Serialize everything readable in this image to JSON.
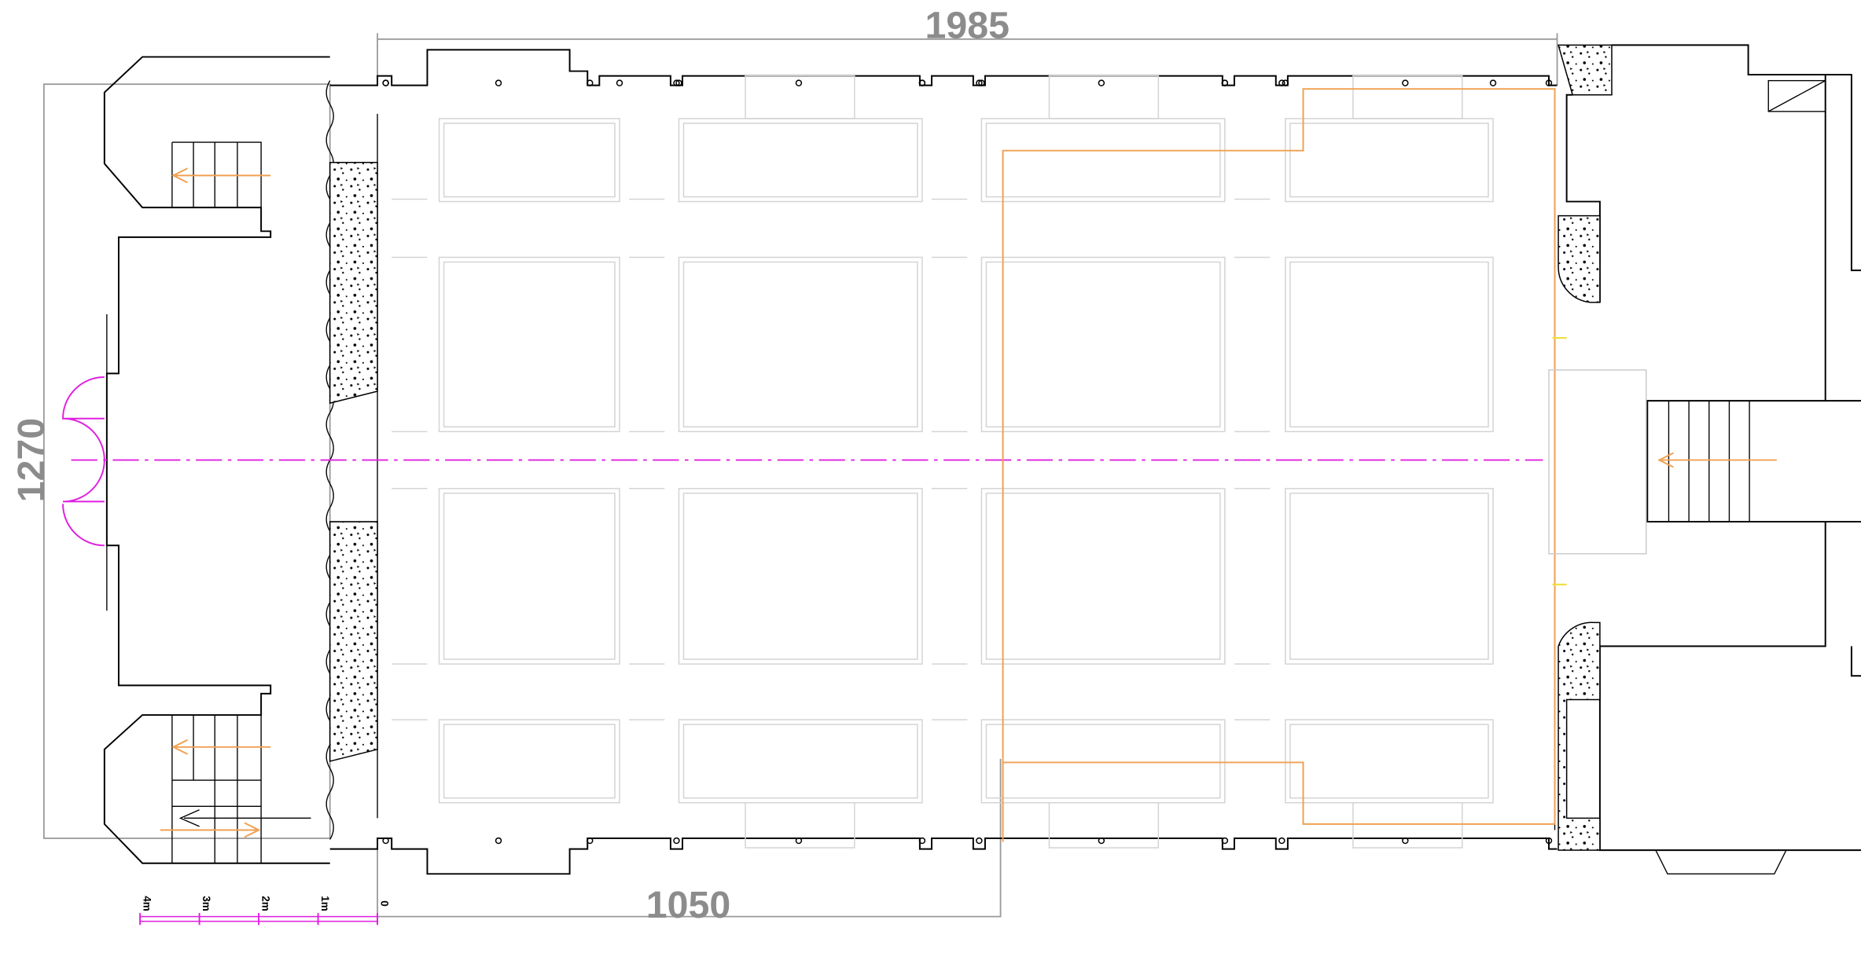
{
  "dimensions": {
    "width": "1985",
    "height": "1270",
    "partial": "1050"
  },
  "scale_bar": {
    "labels": [
      "4m",
      "3m",
      "2m",
      "1m",
      "0"
    ]
  }
}
